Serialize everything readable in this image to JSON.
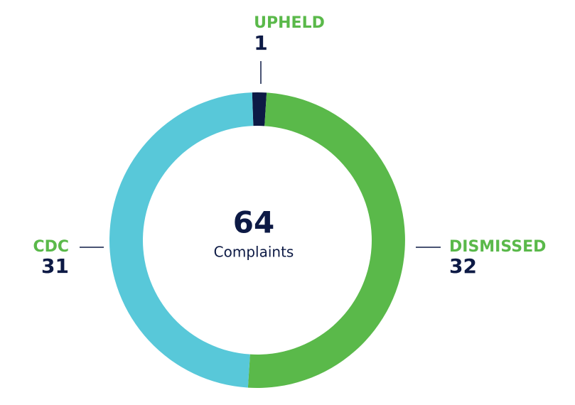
{
  "chart_data": {
    "type": "donut",
    "categories": [
      "UPHELD",
      "DISMISSED",
      "CDC"
    ],
    "values": [
      1,
      32,
      31
    ],
    "colors": [
      "#0d1a45",
      "#5ab94a",
      "#58c8d9"
    ],
    "label_color": "#5ab94a",
    "center_value": 64,
    "center_label": "Complaints"
  }
}
